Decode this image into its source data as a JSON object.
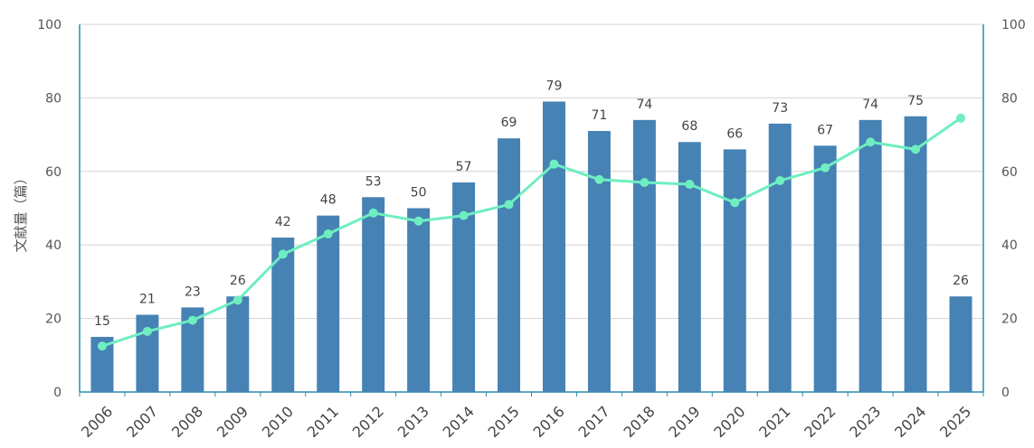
{
  "chart_data": {
    "type": "bar",
    "ylabel": "文献量（篇）",
    "categories": [
      "2006",
      "2007",
      "2008",
      "2009",
      "2010",
      "2011",
      "2012",
      "2013",
      "2014",
      "2015",
      "2016",
      "2017",
      "2018",
      "2019",
      "2020",
      "2021",
      "2022",
      "2023",
      "2024",
      "2025"
    ],
    "series": [
      {
        "type": "bar",
        "color": "#4682B4",
        "values": [
          15,
          21,
          23,
          26,
          42,
          48,
          53,
          50,
          57,
          69,
          79,
          71,
          74,
          68,
          66,
          73,
          67,
          74,
          75,
          26
        ]
      },
      {
        "type": "line",
        "color": "#6EEEC1",
        "values": [
          12.5,
          16.5,
          19.5,
          25,
          37.5,
          43,
          48.7,
          46.5,
          48,
          51,
          62,
          57.8,
          57,
          56.5,
          51.5,
          57.5,
          61,
          68,
          66,
          74.5
        ]
      }
    ],
    "ylim": [
      0,
      100
    ],
    "y_ticks": [
      0,
      20,
      40,
      60,
      80,
      100
    ],
    "y2lim": [
      0,
      100
    ],
    "y2_ticks": [
      0,
      20,
      40,
      60,
      80,
      100
    ],
    "grid": true
  }
}
